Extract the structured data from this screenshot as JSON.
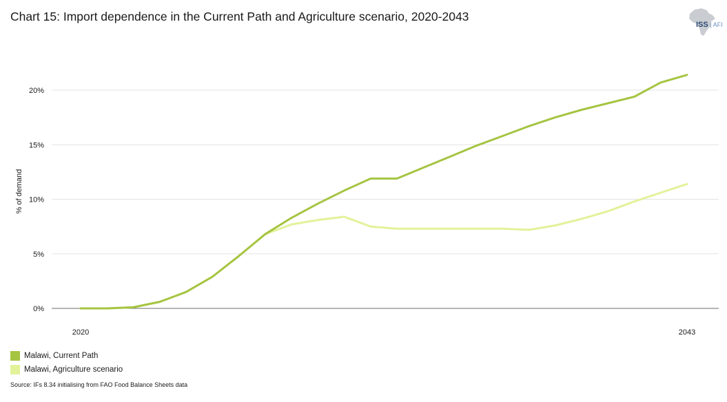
{
  "title": "Chart 15: Import dependence in the Current Path and Agriculture scenario, 2020-2043",
  "logo": {
    "icon": "africa-map-icon",
    "text_main": "ISS",
    "text_sub": "AFI"
  },
  "source": "Source: IFs 8.34 initialising from FAO Food Balance Sheets data",
  "chart_data": {
    "type": "line",
    "ylabel": "% of demand",
    "xlabel": "",
    "x": [
      2020,
      2021,
      2022,
      2023,
      2024,
      2025,
      2026,
      2027,
      2028,
      2029,
      2030,
      2031,
      2032,
      2033,
      2034,
      2035,
      2036,
      2037,
      2038,
      2039,
      2040,
      2041,
      2042,
      2043
    ],
    "xtick_labels": [
      "2020",
      "2043"
    ],
    "xtick_values": [
      2020,
      2043
    ],
    "ylim": [
      0,
      22
    ],
    "yticks": [
      0,
      5,
      10,
      15,
      20
    ],
    "ytick_labels": [
      "0%",
      "5%",
      "10%",
      "15%",
      "20%"
    ],
    "grid": true,
    "series": [
      {
        "name": "Malawi, Current Path",
        "color": "#a5c441",
        "values": [
          0.0,
          0.0,
          0.1,
          0.6,
          1.5,
          2.9,
          4.8,
          6.8,
          8.3,
          9.6,
          10.8,
          11.9,
          11.9,
          12.9,
          13.9,
          14.9,
          15.8,
          16.7,
          17.5,
          18.2,
          18.8,
          19.4,
          20.7,
          21.4
        ]
      },
      {
        "name": "Malawi, Agriculture scenario",
        "color": "#e2f29a",
        "values": [
          0.0,
          0.0,
          0.1,
          0.6,
          1.5,
          2.9,
          4.8,
          6.8,
          7.7,
          8.1,
          8.4,
          7.5,
          7.3,
          7.3,
          7.3,
          7.3,
          7.3,
          7.2,
          7.6,
          8.2,
          8.9,
          9.8,
          10.6,
          11.4
        ]
      }
    ],
    "legend_position": "bottom-left"
  }
}
